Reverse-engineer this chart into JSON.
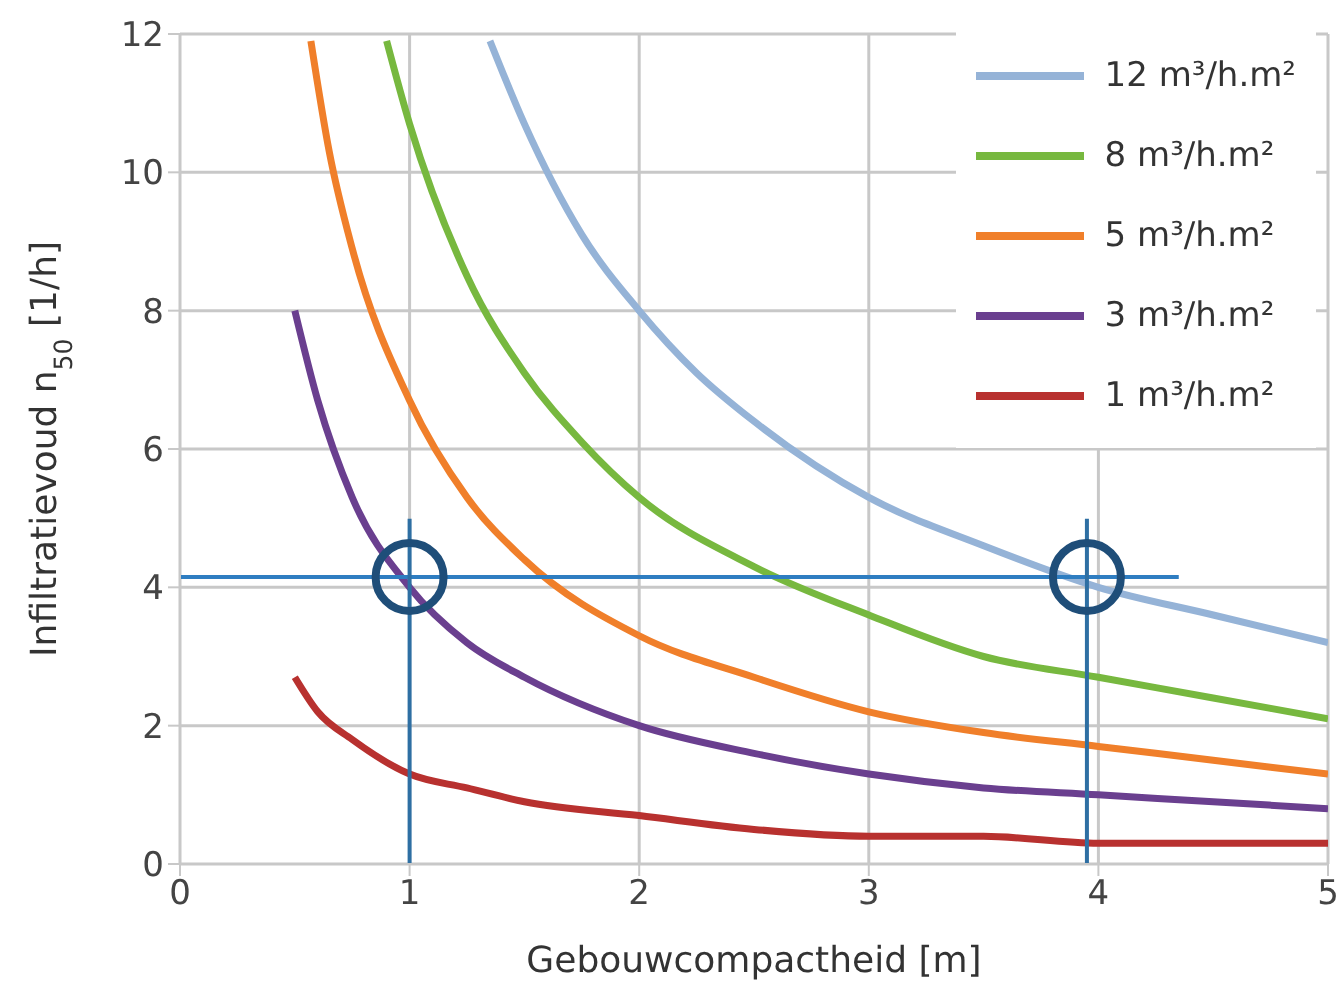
{
  "chart_data": {
    "type": "line",
    "xlabel": "Gebouwcompactheid [m]",
    "ylabel": "Infiltratievoud n$_{50}$ [1/h]",
    "xlim": [
      0,
      5
    ],
    "xticks": [
      0,
      1,
      2,
      3,
      4,
      5
    ],
    "ylim": [
      0,
      12
    ],
    "yticks": [
      0,
      2,
      4,
      6,
      8,
      10,
      12
    ],
    "grid": true,
    "legend": "top right",
    "marker": "none",
    "line_style": "solid",
    "series": [
      {
        "name": "12 m³/h.m²",
        "color": "#95b3d7",
        "x": [
          1.35,
          1.5,
          1.75,
          2,
          2.25,
          2.5,
          3,
          3.5,
          4,
          4.5,
          5
        ],
        "values": [
          11.9,
          10.7,
          9.1,
          8,
          7.1,
          6.4,
          5.3,
          4.6,
          4,
          3.6,
          3.2
        ]
      },
      {
        "name": "8 m³/h.m²",
        "color": "#77b83f",
        "x": [
          0.9,
          1,
          1.25,
          1.5,
          1.75,
          2,
          2.5,
          3,
          3.5,
          4,
          4.5,
          5
        ],
        "values": [
          11.9,
          10.7,
          8.5,
          7.1,
          6.1,
          5.3,
          4.3,
          3.6,
          3,
          2.7,
          2.4,
          2.1
        ]
      },
      {
        "name": "5 m³/h.m²",
        "color": "#f07f2a",
        "x": [
          0.57,
          0.65,
          0.75,
          1,
          1.25,
          1.5,
          2,
          2.5,
          3,
          3.5,
          4,
          4.5,
          5
        ],
        "values": [
          11.9,
          10.3,
          8.9,
          6.7,
          5.3,
          4.4,
          3.3,
          2.7,
          2.2,
          1.9,
          1.7,
          1.5,
          1.3
        ]
      },
      {
        "name": "3 m³/h.m²",
        "color": "#6a3f8f",
        "x": [
          0.5,
          0.6,
          0.75,
          1,
          1.25,
          1.5,
          2,
          2.5,
          3,
          3.5,
          4,
          4.5,
          5
        ],
        "values": [
          8,
          6.7,
          5.3,
          4,
          3.2,
          2.7,
          2,
          1.6,
          1.3,
          1.1,
          1,
          0.9,
          0.8
        ]
      },
      {
        "name": "1 m³/h.m²",
        "color": "#b8312f",
        "x": [
          0.5,
          0.6,
          0.75,
          1,
          1.25,
          1.5,
          2,
          2.5,
          3,
          3.5,
          4,
          4.5,
          5
        ],
        "values": [
          2.7,
          2.2,
          1.8,
          1.3,
          1.1,
          0.9,
          0.7,
          0.5,
          0.4,
          0.4,
          0.3,
          0.3,
          0.3
        ]
      }
    ],
    "ref_lines": [
      {
        "axis": "y",
        "value": 4.15,
        "color": "#2e7dc1"
      },
      {
        "axis": "x",
        "value": 1,
        "color": "#2e6fa3"
      },
      {
        "axis": "x",
        "value": 3.95,
        "color": "#2e6fa3"
      }
    ]
  }
}
